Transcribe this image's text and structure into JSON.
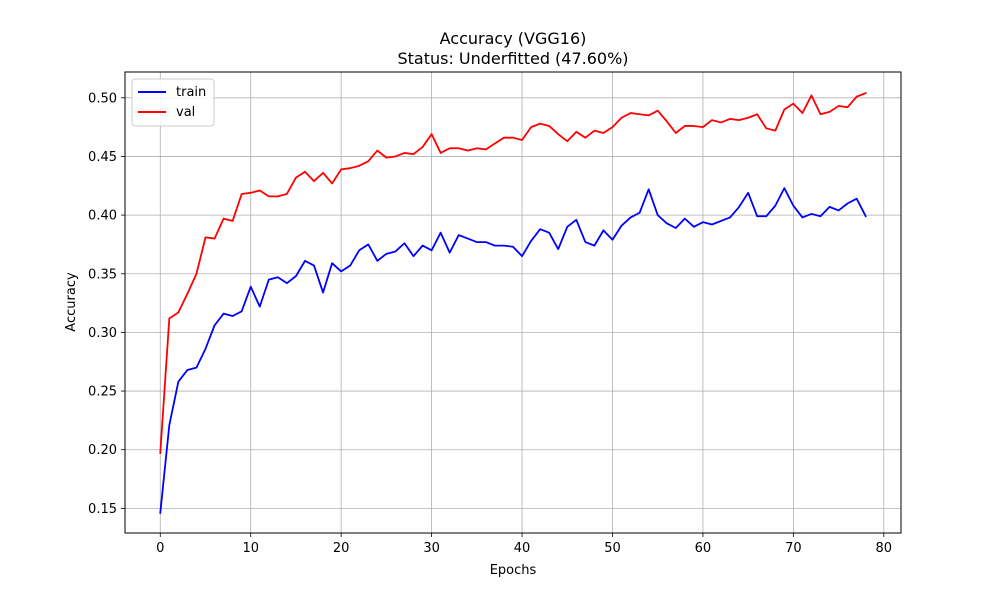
{
  "chart_data": {
    "type": "line",
    "title": "Accuracy (VGG16)",
    "subtitle": "Status: Underfitted (47.60%)",
    "xlabel": "Epochs",
    "ylabel": "Accuracy",
    "xlim": [
      -3.9,
      81.9
    ],
    "ylim": [
      0.129,
      0.522
    ],
    "xticks": [
      0,
      10,
      20,
      30,
      40,
      50,
      60,
      70,
      80
    ],
    "yticks": [
      0.15,
      0.2,
      0.25,
      0.3,
      0.35,
      0.4,
      0.45,
      0.5
    ],
    "ytick_labels": [
      "0.15",
      "0.20",
      "0.25",
      "0.30",
      "0.35",
      "0.40",
      "0.45",
      "0.50"
    ],
    "grid": true,
    "legend_position": "top-left",
    "x": [
      0,
      1,
      2,
      3,
      4,
      5,
      6,
      7,
      8,
      9,
      10,
      11,
      12,
      13,
      14,
      15,
      16,
      17,
      18,
      19,
      20,
      21,
      22,
      23,
      24,
      25,
      26,
      27,
      28,
      29,
      30,
      31,
      32,
      33,
      34,
      35,
      36,
      37,
      38,
      39,
      40,
      41,
      42,
      43,
      44,
      45,
      46,
      47,
      48,
      49,
      50,
      51,
      52,
      53,
      54,
      55,
      56,
      57,
      58,
      59,
      60,
      61,
      62,
      63,
      64,
      65,
      66,
      67,
      68,
      69,
      70,
      71,
      72,
      73,
      74,
      75,
      76,
      77,
      78
    ],
    "series": [
      {
        "name": "train",
        "color": "#0000ff",
        "values": [
          0.146,
          0.221,
          0.258,
          0.268,
          0.27,
          0.286,
          0.306,
          0.316,
          0.314,
          0.318,
          0.339,
          0.322,
          0.345,
          0.347,
          0.342,
          0.348,
          0.361,
          0.357,
          0.334,
          0.359,
          0.352,
          0.357,
          0.37,
          0.375,
          0.361,
          0.367,
          0.369,
          0.376,
          0.365,
          0.374,
          0.37,
          0.385,
          0.368,
          0.383,
          0.38,
          0.377,
          0.377,
          0.374,
          0.374,
          0.373,
          0.365,
          0.378,
          0.388,
          0.385,
          0.371,
          0.39,
          0.396,
          0.377,
          0.374,
          0.387,
          0.379,
          0.391,
          0.398,
          0.402,
          0.422,
          0.4,
          0.393,
          0.389,
          0.397,
          0.39,
          0.394,
          0.392,
          0.395,
          0.398,
          0.407,
          0.419,
          0.399,
          0.399,
          0.408,
          0.423,
          0.408,
          0.398,
          0.401,
          0.399,
          0.407,
          0.404,
          0.41,
          0.414,
          0.399
        ]
      },
      {
        "name": "val",
        "color": "#ff0000",
        "values": [
          0.197,
          0.312,
          0.317,
          0.333,
          0.35,
          0.381,
          0.38,
          0.397,
          0.395,
          0.418,
          0.419,
          0.421,
          0.416,
          0.416,
          0.418,
          0.432,
          0.437,
          0.429,
          0.436,
          0.427,
          0.439,
          0.44,
          0.442,
          0.446,
          0.455,
          0.449,
          0.45,
          0.453,
          0.452,
          0.458,
          0.469,
          0.453,
          0.457,
          0.457,
          0.455,
          0.457,
          0.456,
          0.461,
          0.466,
          0.466,
          0.464,
          0.475,
          0.478,
          0.476,
          0.469,
          0.463,
          0.471,
          0.466,
          0.472,
          0.47,
          0.475,
          0.483,
          0.487,
          0.486,
          0.485,
          0.489,
          0.48,
          0.47,
          0.476,
          0.476,
          0.475,
          0.481,
          0.479,
          0.482,
          0.481,
          0.483,
          0.486,
          0.474,
          0.472,
          0.49,
          0.495,
          0.487,
          0.502,
          0.486,
          0.488,
          0.493,
          0.492,
          0.501,
          0.504
        ]
      }
    ]
  }
}
